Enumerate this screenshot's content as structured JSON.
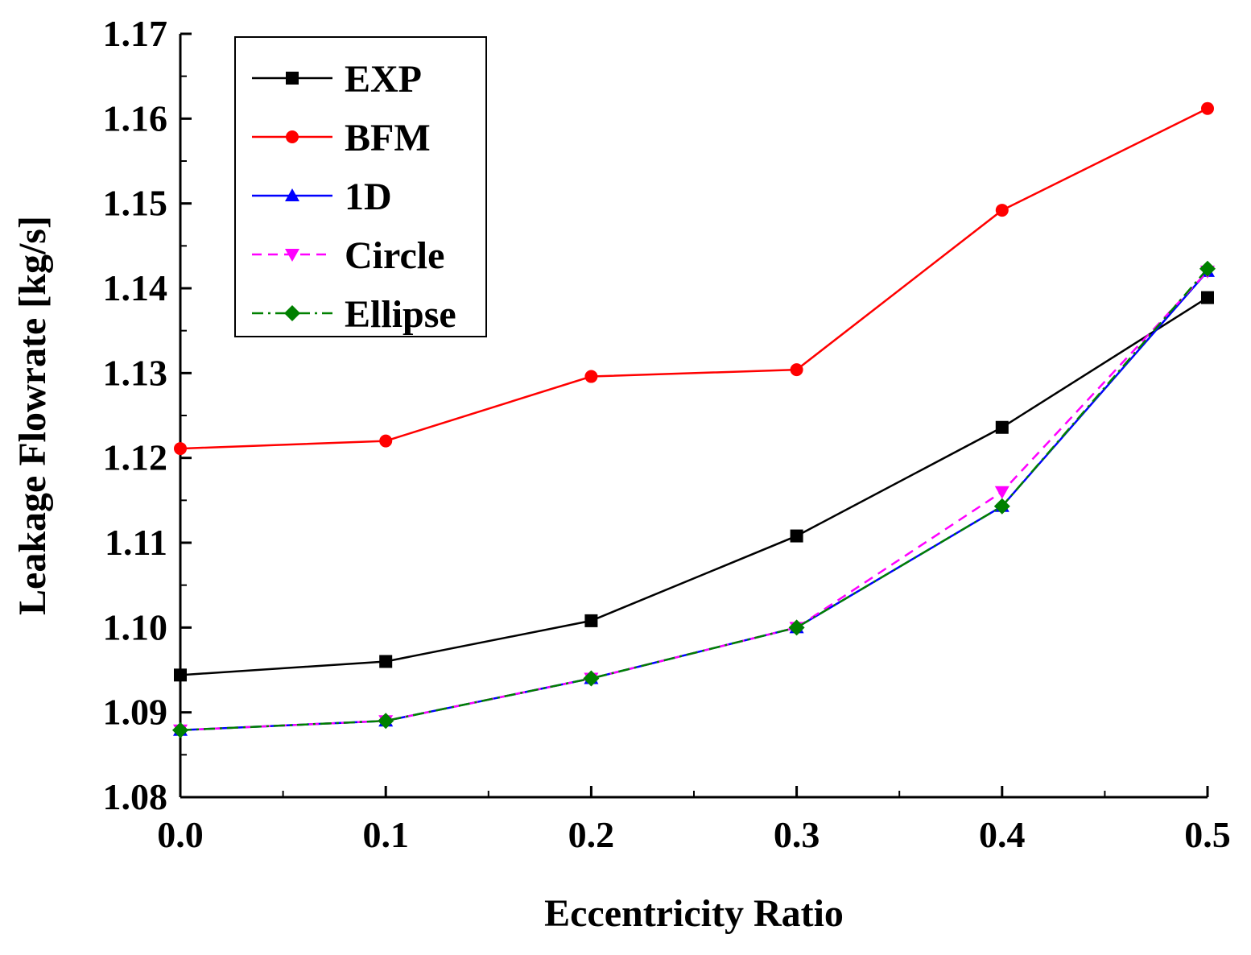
{
  "chart_data": {
    "type": "line",
    "title": "",
    "xlabel": "Eccentricity Ratio",
    "ylabel": "Leakage Flowrate [kg/s]",
    "xlim": [
      0.0,
      0.5
    ],
    "ylim": [
      1.08,
      1.17
    ],
    "x": [
      0.0,
      0.1,
      0.2,
      0.3,
      0.4,
      0.5
    ],
    "x_ticks": [
      "0.0",
      "0.1",
      "0.2",
      "0.3",
      "0.4",
      "0.5"
    ],
    "y_ticks": [
      "1.08",
      "1.09",
      "1.10",
      "1.11",
      "1.12",
      "1.13",
      "1.14",
      "1.15",
      "1.16",
      "1.17"
    ],
    "grid": false,
    "legend_position": "top-left",
    "series": [
      {
        "name": "EXP",
        "color": "#000000",
        "marker": "square",
        "dash": "solid",
        "values": [
          1.0944,
          1.096,
          1.1008,
          1.1108,
          1.1236,
          1.1389
        ]
      },
      {
        "name": "BFM",
        "color": "#ff0000",
        "marker": "circle",
        "dash": "solid",
        "values": [
          1.1211,
          1.122,
          1.1296,
          1.1304,
          1.1492,
          1.1612
        ]
      },
      {
        "name": "1D",
        "color": "#0000ff",
        "marker": "triangle-up",
        "dash": "solid",
        "values": [
          1.0879,
          1.089,
          1.094,
          1.1,
          1.1143,
          1.142
        ]
      },
      {
        "name": "Circle",
        "color": "#ff00ff",
        "marker": "triangle-down",
        "dash": "dashed",
        "values": [
          1.0879,
          1.089,
          1.094,
          1.1,
          1.116,
          1.142
        ]
      },
      {
        "name": "Ellipse",
        "color": "#008000",
        "marker": "diamond",
        "dash": "dashdot",
        "values": [
          1.0879,
          1.089,
          1.094,
          1.1,
          1.1143,
          1.1423
        ]
      }
    ]
  }
}
